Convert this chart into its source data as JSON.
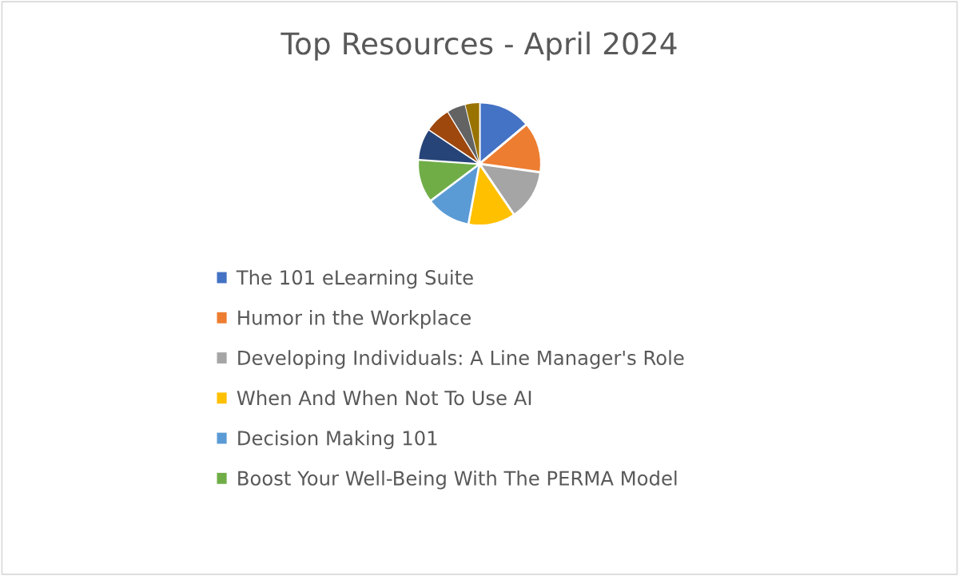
{
  "chart_data": {
    "type": "pie",
    "title": "Top Resources - April 2024",
    "categories": [
      "The 101 eLearning Suite",
      "Humor in the Workplace",
      "Developing Individuals: A Line Manager's Role",
      "When And When Not To Use AI",
      "Decision Making 101",
      "Boost Your Well-Being With The PERMA Model",
      null,
      null,
      null,
      null
    ],
    "values": [
      13.9,
      13.3,
      13.3,
      12.4,
      11.8,
      11.4,
      8.3,
      6.9,
      4.9,
      3.8
    ],
    "colors": [
      "#4472c4",
      "#ed7d31",
      "#a5a5a5",
      "#ffc000",
      "#5b9bd5",
      "#70ad47",
      "#264478",
      "#9e480e",
      "#636363",
      "#997300"
    ],
    "legend": "bottom"
  }
}
